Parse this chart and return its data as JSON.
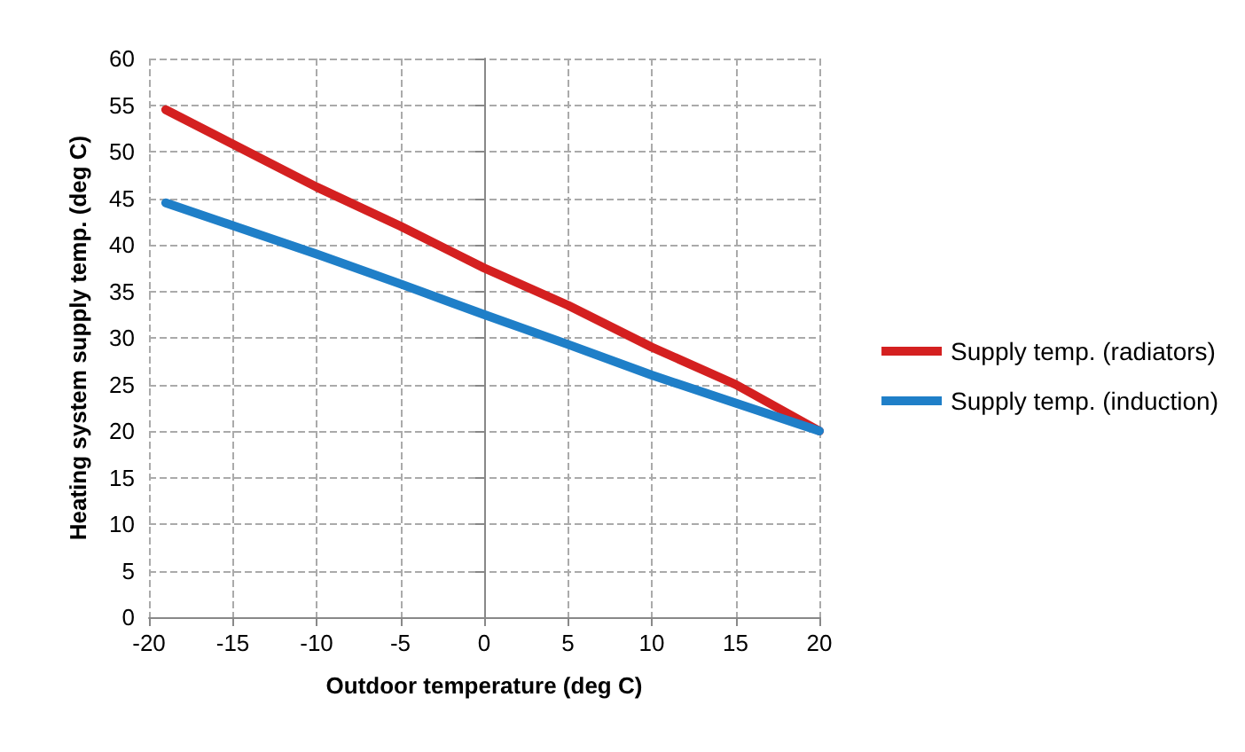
{
  "chart_data": {
    "type": "line",
    "xlabel": "Outdoor temperature (deg C)",
    "ylabel": "Heating system supply temp. (deg C)",
    "x": [
      -19,
      -10,
      -5,
      0,
      5,
      10,
      15,
      20
    ],
    "series": [
      {
        "name": "Supply temp. (radiators)",
        "color": "#d42020",
        "values": [
          54.5,
          46.2,
          42,
          37.5,
          33.5,
          29,
          25,
          20
        ]
      },
      {
        "name": "Supply temp. (induction)",
        "color": "#1f7fc8",
        "values": [
          44.5,
          39,
          35.8,
          32.5,
          29.3,
          26,
          23,
          20
        ]
      }
    ],
    "xlim": [
      -20,
      20
    ],
    "xticks": [
      -20,
      -15,
      -10,
      -5,
      0,
      5,
      10,
      15,
      20
    ],
    "ylim": [
      0,
      60
    ],
    "yticks": [
      0,
      5,
      10,
      15,
      20,
      25,
      30,
      35,
      40,
      45,
      50,
      55,
      60
    ],
    "grid": true,
    "legend": "right",
    "marker": "none",
    "line_style": "solid"
  }
}
